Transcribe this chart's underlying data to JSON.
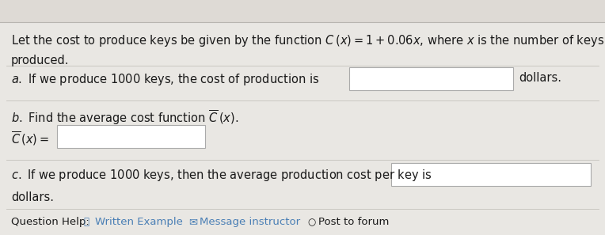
{
  "bg_color": "#e9e7e3",
  "top_section_color": "#f0eeeb",
  "text_color": "#1a1a1a",
  "link_color": "#4a7fb5",
  "line1": "Let the cost to produce keys be given by the function $C\\,(x) = 1 + 0.06x$, where $x$ is the number of keys",
  "line2": "produced.",
  "part_a_label": "$a.$",
  "part_a_text": " If we produce 1000 keys, the cost of production is",
  "part_a_suffix": "dollars.",
  "part_b_label": "$b.$",
  "part_b_text": " Find the average cost function $\\overline{C}\\,(x)$.",
  "part_b_eq": "$\\overline{C}\\,(x) =$",
  "part_c_label": "$c.$",
  "part_c_text": " If we produce 1000 keys, then the average production cost per key is",
  "part_c_suffix": "dollars.",
  "help_text": "Question Help:",
  "help_link1": "Written Example",
  "help_link2": "Message instructor",
  "help_link3": "Post to forum",
  "box_color": "#ffffff",
  "box_border": "#aaaaaa",
  "font_size_main": 10.5,
  "font_size_help": 9.5
}
